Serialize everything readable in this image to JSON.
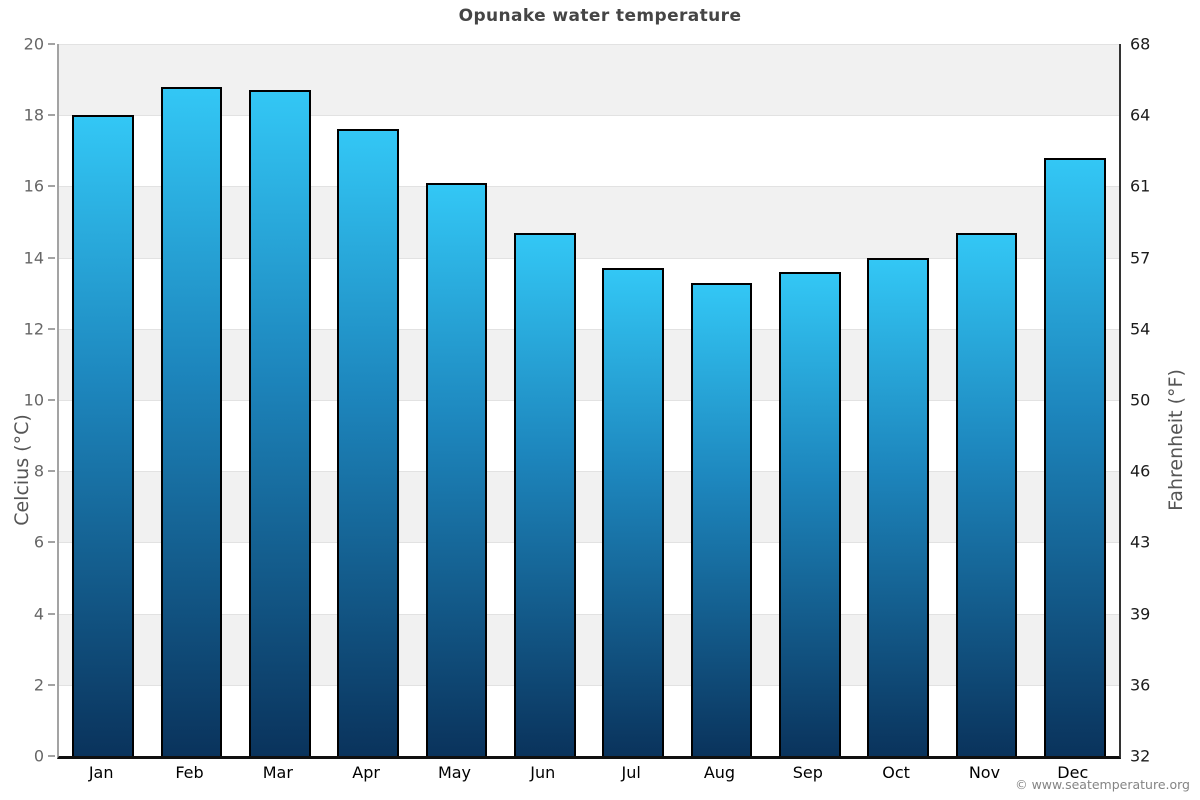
{
  "title": "Opunake water temperature",
  "copyright": "© www.seatemperature.org",
  "chart_data": {
    "type": "bar",
    "title": "Opunake water temperature",
    "categories": [
      "Jan",
      "Feb",
      "Mar",
      "Apr",
      "May",
      "Jun",
      "Jul",
      "Aug",
      "Sep",
      "Oct",
      "Nov",
      "Dec"
    ],
    "values": [
      18.0,
      18.8,
      18.7,
      17.6,
      16.1,
      14.7,
      13.7,
      13.3,
      13.6,
      14.0,
      14.7,
      16.8
    ],
    "ylabel_left": "Celcius (°C)",
    "ylabel_right": "Fahrenheit (°F)",
    "yticks_celsius": [
      20,
      18,
      16,
      14,
      12,
      10,
      8,
      6,
      4,
      2,
      0
    ],
    "yticks_fahrenheit": [
      68,
      64,
      61,
      57,
      54,
      50,
      46,
      43,
      39,
      36,
      32
    ],
    "ylim": [
      0,
      20
    ],
    "grid": "alternating horizontal bands every 2°C, gray band at top (18–20)",
    "legend": "none",
    "bar_color_top": "#33c7f5",
    "bar_color_bottom": "#0a335c",
    "bar_border_color": "#000000",
    "band_color": "#f1f1f1"
  }
}
